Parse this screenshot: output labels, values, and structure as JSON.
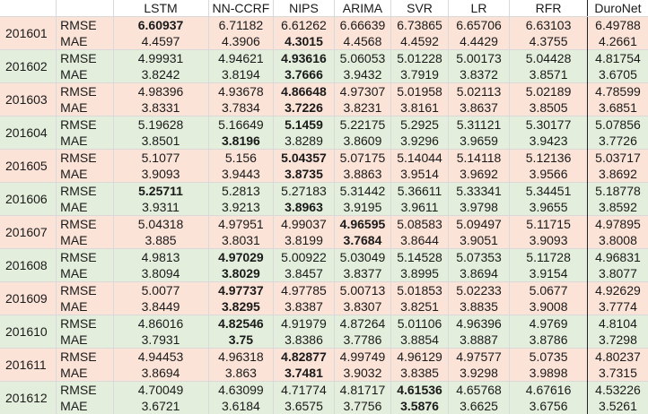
{
  "colors": {
    "band_a": "#fce3d7",
    "band_b": "#e3efdc",
    "header_bg": "#ffffff"
  },
  "header": {
    "period": "",
    "metric": "",
    "models": [
      "LSTM",
      "NN-CCRF",
      "NIPS",
      "ARIMA",
      "SVR",
      "LR",
      "RFR",
      "DuroNet"
    ]
  },
  "rows": [
    {
      "period": "201601",
      "band": "pink",
      "metrics": [
        {
          "metric": "RMSE",
          "values": [
            "6.60937",
            "6.71182",
            "6.61262",
            "6.66639",
            "6.73865",
            "6.65706",
            "6.63103",
            "6.49788"
          ],
          "bold": [
            0
          ]
        },
        {
          "metric": "MAE",
          "values": [
            "4.4597",
            "4.3906",
            "4.3015",
            "4.4568",
            "4.4592",
            "4.4429",
            "4.3755",
            "4.2661"
          ],
          "bold": [
            2
          ]
        }
      ]
    },
    {
      "period": "201602",
      "band": "green",
      "metrics": [
        {
          "metric": "RMSE",
          "values": [
            "4.99931",
            "4.94621",
            "4.93616",
            "5.06053",
            "5.01228",
            "5.00173",
            "5.04428",
            "4.81754"
          ],
          "bold": [
            2
          ]
        },
        {
          "metric": "MAE",
          "values": [
            "3.8242",
            "3.8194",
            "3.7666",
            "3.9432",
            "3.7919",
            "3.8372",
            "3.8571",
            "3.6705"
          ],
          "bold": [
            2
          ]
        }
      ]
    },
    {
      "period": "201603",
      "band": "pink",
      "metrics": [
        {
          "metric": "RMSE",
          "values": [
            "4.98396",
            "4.93678",
            "4.86648",
            "4.97307",
            "5.01958",
            "5.02113",
            "5.02189",
            "4.78599"
          ],
          "bold": [
            2
          ]
        },
        {
          "metric": "MAE",
          "values": [
            "3.8331",
            "3.7834",
            "3.7226",
            "3.8231",
            "3.8161",
            "3.8637",
            "3.8505",
            "3.6851"
          ],
          "bold": [
            2
          ]
        }
      ]
    },
    {
      "period": "201604",
      "band": "green",
      "metrics": [
        {
          "metric": "RMSE",
          "values": [
            "5.19628",
            "5.16649",
            "5.1459",
            "5.22175",
            "5.2925",
            "5.31121",
            "5.30177",
            "5.07856"
          ],
          "bold": [
            2
          ]
        },
        {
          "metric": "MAE",
          "values": [
            "3.8501",
            "3.8196",
            "3.8289",
            "3.8609",
            "3.9296",
            "3.9659",
            "3.9423",
            "3.7726"
          ],
          "bold": [
            1
          ]
        }
      ]
    },
    {
      "period": "201605",
      "band": "pink",
      "metrics": [
        {
          "metric": "RMSE",
          "values": [
            "5.1077",
            "5.156",
            "5.04357",
            "5.07175",
            "5.14044",
            "5.14118",
            "5.12136",
            "5.03717"
          ],
          "bold": [
            2
          ]
        },
        {
          "metric": "MAE",
          "values": [
            "3.9093",
            "3.9443",
            "3.8735",
            "3.8863",
            "3.9514",
            "3.9692",
            "3.9566",
            "3.8692"
          ],
          "bold": [
            2
          ]
        }
      ]
    },
    {
      "period": "201606",
      "band": "green",
      "metrics": [
        {
          "metric": "RMSE",
          "values": [
            "5.25711",
            "5.2813",
            "5.27183",
            "5.31442",
            "5.36611",
            "5.33341",
            "5.34451",
            "5.18778"
          ],
          "bold": [
            0
          ]
        },
        {
          "metric": "MAE",
          "values": [
            "3.9311",
            "3.9213",
            "3.8963",
            "3.9195",
            "3.9611",
            "3.9798",
            "3.9655",
            "3.8592"
          ],
          "bold": [
            2
          ]
        }
      ]
    },
    {
      "period": "201607",
      "band": "pink",
      "metrics": [
        {
          "metric": "RMSE",
          "values": [
            "5.04318",
            "4.97951",
            "4.99037",
            "4.96595",
            "5.08583",
            "5.09497",
            "5.11715",
            "4.97895"
          ],
          "bold": [
            3
          ]
        },
        {
          "metric": "MAE",
          "values": [
            "3.885",
            "3.8031",
            "3.8199",
            "3.7684",
            "3.8644",
            "3.9051",
            "3.9093",
            "3.8008"
          ],
          "bold": [
            3
          ]
        }
      ]
    },
    {
      "period": "201608",
      "band": "green",
      "metrics": [
        {
          "metric": "RMSE",
          "values": [
            "4.9813",
            "4.97029",
            "5.00922",
            "5.03049",
            "5.14528",
            "5.07353",
            "5.11728",
            "4.96831"
          ],
          "bold": [
            1
          ]
        },
        {
          "metric": "MAE",
          "values": [
            "3.8094",
            "3.8029",
            "3.8457",
            "3.8377",
            "3.8995",
            "3.8694",
            "3.9154",
            "3.8077"
          ],
          "bold": [
            1
          ]
        }
      ]
    },
    {
      "period": "201609",
      "band": "pink",
      "metrics": [
        {
          "metric": "RMSE",
          "values": [
            "5.0077",
            "4.97737",
            "4.97785",
            "5.00713",
            "5.01853",
            "5.02233",
            "5.0677",
            "4.92629"
          ],
          "bold": [
            1
          ]
        },
        {
          "metric": "MAE",
          "values": [
            "3.8449",
            "3.8295",
            "3.8387",
            "3.8307",
            "3.8251",
            "3.8835",
            "3.9008",
            "3.7774"
          ],
          "bold": [
            1
          ]
        }
      ]
    },
    {
      "period": "201610",
      "band": "green",
      "metrics": [
        {
          "metric": "RMSE",
          "values": [
            "4.86016",
            "4.82546",
            "4.91979",
            "4.87264",
            "5.01106",
            "4.96396",
            "4.9769",
            "4.8104"
          ],
          "bold": [
            1
          ]
        },
        {
          "metric": "MAE",
          "values": [
            "3.7931",
            "3.75",
            "3.8386",
            "3.7786",
            "3.8854",
            "3.8887",
            "3.8786",
            "3.7298"
          ],
          "bold": [
            1
          ]
        }
      ]
    },
    {
      "period": "201611",
      "band": "pink",
      "metrics": [
        {
          "metric": "RMSE",
          "values": [
            "4.94453",
            "4.96318",
            "4.82877",
            "4.99749",
            "4.96129",
            "4.97577",
            "5.0735",
            "4.80237"
          ],
          "bold": [
            2
          ]
        },
        {
          "metric": "MAE",
          "values": [
            "3.8694",
            "3.863",
            "3.7481",
            "3.9032",
            "3.8385",
            "3.9298",
            "3.9898",
            "3.7315"
          ],
          "bold": [
            2
          ]
        }
      ]
    },
    {
      "period": "201612",
      "band": "green",
      "metrics": [
        {
          "metric": "RMSE",
          "values": [
            "4.70049",
            "4.63099",
            "4.71774",
            "4.81717",
            "4.61536",
            "4.65768",
            "4.67616",
            "4.53226"
          ],
          "bold": [
            4
          ]
        },
        {
          "metric": "MAE",
          "values": [
            "3.6721",
            "3.6184",
            "3.6575",
            "3.7756",
            "3.5876",
            "3.6625",
            "3.6756",
            "3.5261"
          ],
          "bold": [
            4
          ]
        }
      ]
    }
  ]
}
